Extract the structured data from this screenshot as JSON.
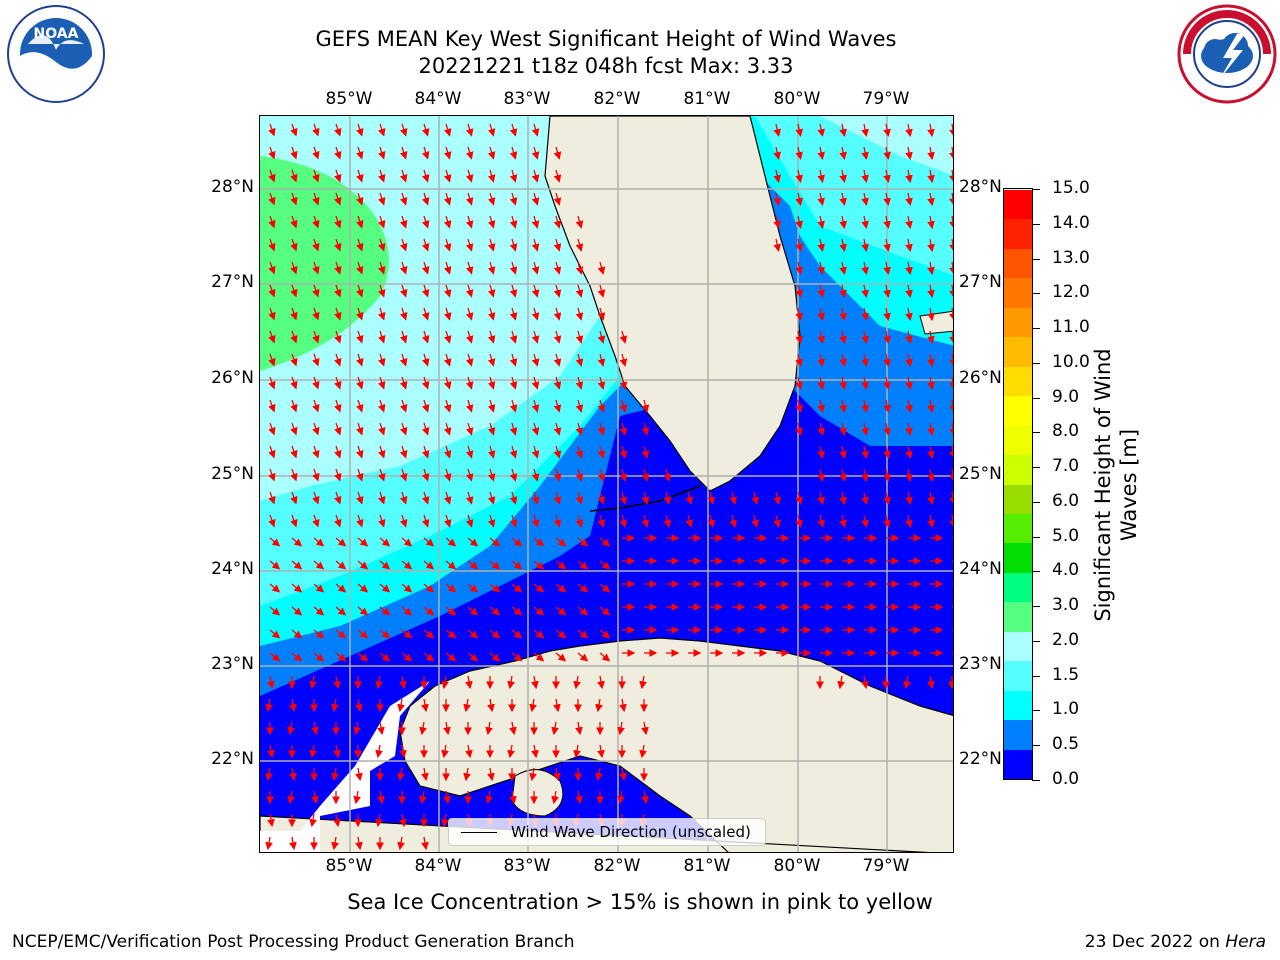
{
  "title_line1": "GEFS MEAN Key West Significant Height of Wind Waves",
  "title_line2": "20221221 t18z 048h fcst   Max: 3.33",
  "logos": {
    "left": "NOAA",
    "left_ring": "NATIONAL OCEANIC AND ATMOSPHERIC ADMINISTRATION · U.S. DEPARTMENT OF COMMERCE",
    "right_ring": "NATIONAL WEATHER SERVICE"
  },
  "lon_labels": [
    "85°W",
    "84°W",
    "83°W",
    "82°W",
    "81°W",
    "80°W",
    "79°W"
  ],
  "lat_labels": [
    "28°N",
    "27°N",
    "26°N",
    "25°N",
    "24°N",
    "23°N",
    "22°N"
  ],
  "colorbar": {
    "label": "Significant Height of Wind Waves [m]",
    "ticks": [
      "15.0",
      "14.0",
      "13.0",
      "12.0",
      "11.0",
      "10.0",
      "9.0",
      "8.0",
      "7.0",
      "6.0",
      "5.0",
      "4.0",
      "3.0",
      "2.0",
      "1.5",
      "1.0",
      "0.5",
      "0.0"
    ],
    "colors": [
      "#0000ff",
      "#0080ff",
      "#00ffff",
      "#55ffff",
      "#aaffff",
      "#55ff80",
      "#00ff80",
      "#00dd00",
      "#55ee00",
      "#99dd00",
      "#ccff00",
      "#eeff00",
      "#ffff00",
      "#ffdd00",
      "#ffbb00",
      "#ff9900",
      "#ff7700",
      "#ff5500",
      "#ff2200",
      "#ff0000"
    ]
  },
  "legend_label": "Wind Wave Direction (unscaled)",
  "caption": "Sea Ice Concentration > 15% is shown in pink to yellow",
  "footer_left": "NCEP/EMC/Verification Post Processing Product Generation Branch",
  "footer_right_date": "23 Dec 2022 on ",
  "footer_right_host": "Hera",
  "colors": {
    "land": "#efedde",
    "arrow": "#ff0000",
    "grid": "#b0b0b0"
  }
}
